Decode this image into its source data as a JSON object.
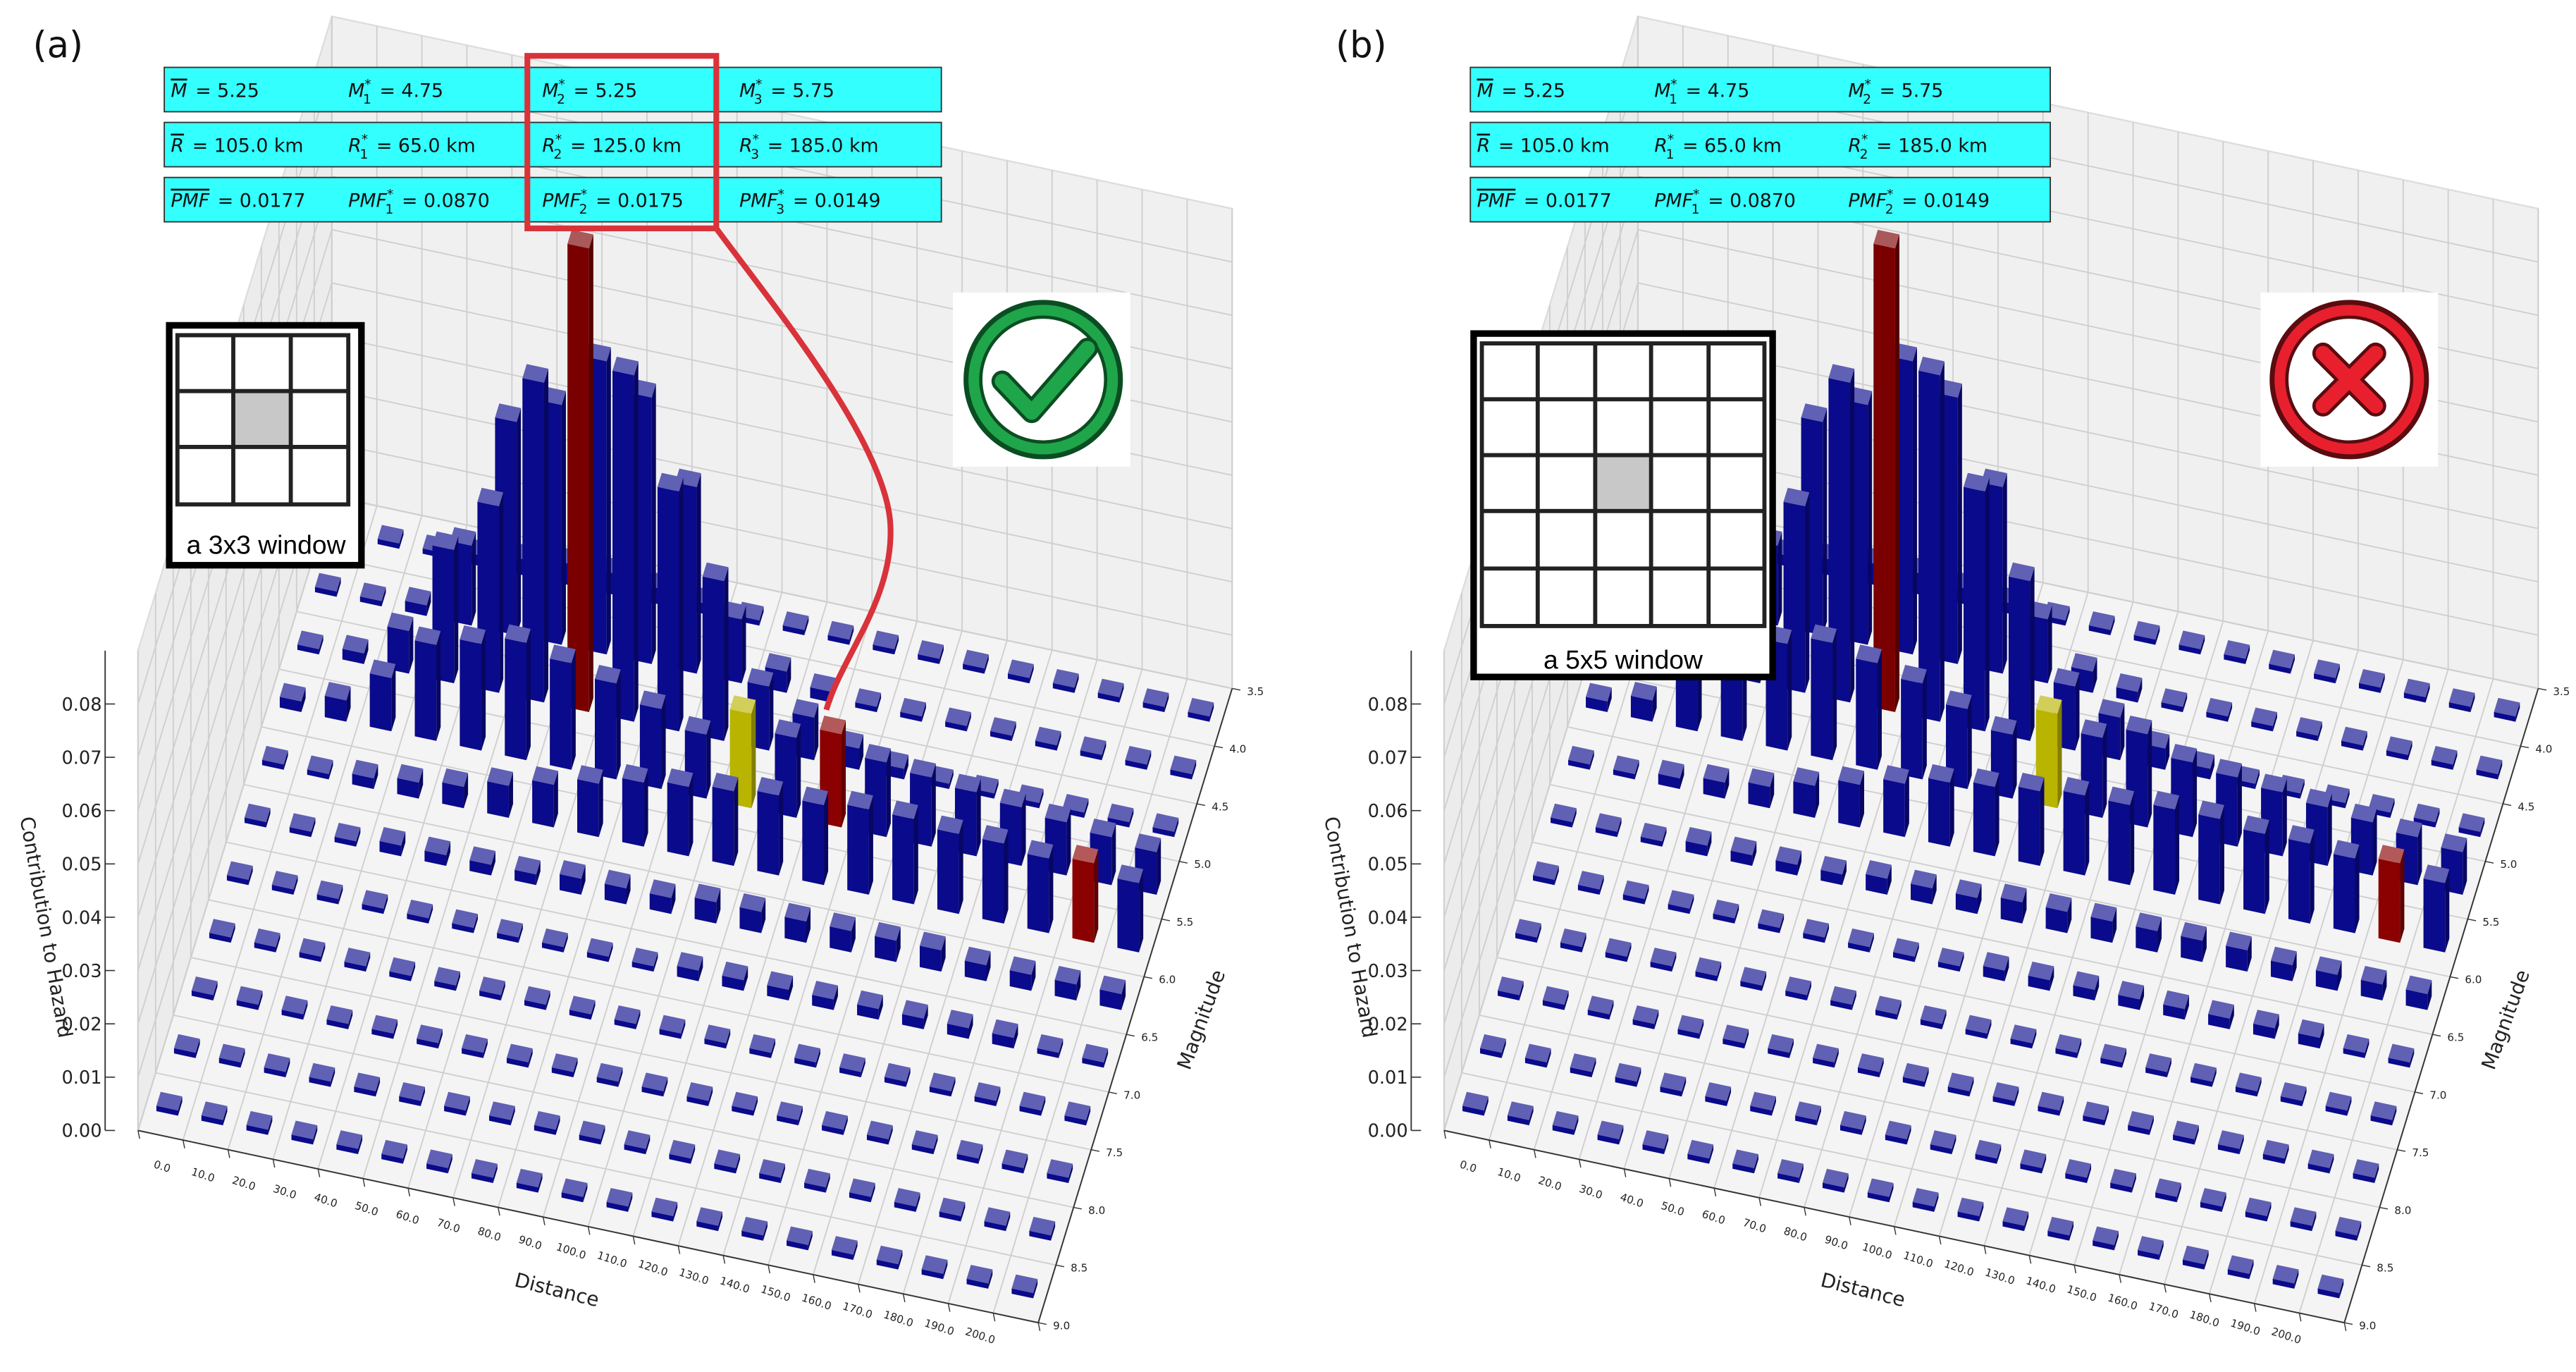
{
  "chart_data": [
    {
      "type": "bar3d",
      "panel_label": "(a)",
      "inset_label": "a 3x3 window",
      "info": [
        [
          {
            "symbol": "M",
            "overline": true,
            "value": "= 5.25"
          },
          {
            "symbol": "M",
            "sub": "1",
            "sup": "*",
            "value": "= 4.75"
          },
          {
            "symbol": "M",
            "sub": "2",
            "sup": "*",
            "value": "= 5.25"
          },
          {
            "symbol": "M",
            "sub": "3",
            "sup": "*",
            "value": "= 5.75"
          }
        ],
        [
          {
            "symbol": "R",
            "overline": true,
            "value": "= 105.0 km"
          },
          {
            "symbol": "R",
            "sub": "1",
            "sup": "*",
            "value": "= 65.0 km"
          },
          {
            "symbol": "R",
            "sub": "2",
            "sup": "*",
            "value": "= 125.0 km"
          },
          {
            "symbol": "R",
            "sub": "3",
            "sup": "*",
            "value": "= 185.0 km"
          }
        ],
        [
          {
            "symbol": "PMF",
            "overline": true,
            "value": "= 0.0177"
          },
          {
            "symbol": "PMF",
            "sub": "1",
            "sup": "*",
            "value": "= 0.0870"
          },
          {
            "symbol": "PMF",
            "sub": "2",
            "sup": "*",
            "value": "= 0.0175"
          },
          {
            "symbol": "PMF",
            "sub": "3",
            "sup": "*",
            "value": "= 0.0149"
          }
        ]
      ],
      "xlabel": "Distance",
      "ylabel": "Magnitude",
      "zlabel": "Contribution to Hazard",
      "x": [
        5,
        15,
        25,
        35,
        45,
        55,
        65,
        75,
        85,
        95,
        105,
        115,
        125,
        135,
        145,
        155,
        165,
        175,
        185,
        195
      ],
      "y": [
        3.75,
        4.25,
        4.75,
        5.25,
        5.75,
        6.25,
        6.75,
        7.25,
        7.75,
        8.25,
        8.75
      ],
      "values": [
        [
          0.001,
          0.001,
          0.001,
          0.002,
          0.003,
          0.004,
          0.004,
          0.003,
          0.002,
          0.001,
          0.001,
          0.001,
          0.001,
          0.001,
          0.001,
          0.001,
          0.001,
          0.001,
          0.001,
          0.001
        ],
        [
          0.001,
          0.001,
          0.002,
          0.015,
          0.04,
          0.045,
          0.055,
          0.05,
          0.035,
          0.012,
          0.004,
          0.002,
          0.001,
          0.001,
          0.001,
          0.001,
          0.001,
          0.001,
          0.001,
          0.001
        ],
        [
          0.001,
          0.002,
          0.008,
          0.025,
          0.035,
          0.06,
          0.087,
          0.065,
          0.045,
          0.03,
          0.012,
          0.008,
          0.004,
          0.002,
          0.001,
          0.001,
          0.001,
          0.001,
          0.001,
          0.001
        ],
        [
          0.002,
          0.004,
          0.01,
          0.018,
          0.02,
          0.022,
          0.02,
          0.018,
          0.015,
          0.012,
          0.0177,
          0.015,
          0.0175,
          0.014,
          0.013,
          0.012,
          0.011,
          0.01,
          0.009,
          0.008
        ],
        [
          0.001,
          0.001,
          0.002,
          0.003,
          0.004,
          0.006,
          0.008,
          0.01,
          0.012,
          0.013,
          0.014,
          0.015,
          0.015,
          0.016,
          0.016,
          0.015,
          0.015,
          0.014,
          0.0149,
          0.013
        ],
        [
          0.001,
          0.001,
          0.001,
          0.002,
          0.002,
          0.002,
          0.002,
          0.003,
          0.003,
          0.003,
          0.004,
          0.004,
          0.004,
          0.004,
          0.004,
          0.004,
          0.003,
          0.003,
          0.003,
          0.003
        ],
        [
          0.001,
          0.001,
          0.001,
          0.001,
          0.001,
          0.001,
          0.001,
          0.001,
          0.001,
          0.001,
          0.002,
          0.002,
          0.002,
          0.002,
          0.002,
          0.002,
          0.002,
          0.002,
          0.001,
          0.001
        ],
        [
          0.001,
          0.001,
          0.001,
          0.001,
          0.001,
          0.001,
          0.001,
          0.001,
          0.001,
          0.001,
          0.001,
          0.001,
          0.001,
          0.001,
          0.001,
          0.001,
          0.001,
          0.001,
          0.001,
          0.001
        ],
        [
          0.001,
          0.001,
          0.001,
          0.001,
          0.001,
          0.001,
          0.001,
          0.001,
          0.001,
          0.001,
          0.001,
          0.001,
          0.001,
          0.001,
          0.001,
          0.001,
          0.001,
          0.001,
          0.001,
          0.001
        ],
        [
          0.001,
          0.001,
          0.001,
          0.001,
          0.001,
          0.001,
          0.001,
          0.001,
          0.001,
          0.001,
          0.001,
          0.001,
          0.001,
          0.001,
          0.001,
          0.001,
          0.001,
          0.001,
          0.001,
          0.001
        ],
        [
          0.001,
          0.001,
          0.001,
          0.001,
          0.001,
          0.001,
          0.001,
          0.001,
          0.001,
          0.001,
          0.001,
          0.001,
          0.001,
          0.001,
          0.001,
          0.001,
          0.001,
          0.001,
          0.001,
          0.001
        ]
      ],
      "color": "#0a0a8c",
      "highlights": [
        {
          "x": 65,
          "y": 4.75,
          "color": "#7a0000"
        },
        {
          "x": 125,
          "y": 5.25,
          "color": "#8b0000"
        },
        {
          "x": 185,
          "y": 5.75,
          "color": "#8b0000"
        },
        {
          "x": 105,
          "y": 5.25,
          "color": "#b8b400"
        }
      ],
      "xlim": [
        0,
        200
      ],
      "ylim": [
        3.5,
        9
      ],
      "zlim": [
        0,
        0.09
      ],
      "xticks": [
        {
          "value": 0,
          "label": "0.0"
        },
        {
          "value": 10,
          "label": "10.0"
        },
        {
          "value": 20,
          "label": "20.0"
        },
        {
          "value": 30,
          "label": "30.0"
        },
        {
          "value": 40,
          "label": "40.0"
        },
        {
          "value": 50,
          "label": "50.0"
        },
        {
          "value": 60,
          "label": "60.0"
        },
        {
          "value": 70,
          "label": "70.0"
        },
        {
          "value": 80,
          "label": "80.0"
        },
        {
          "value": 90,
          "label": "90.0"
        },
        {
          "value": 100,
          "label": "100.0"
        },
        {
          "value": 110,
          "label": "110.0"
        },
        {
          "value": 120,
          "label": "120.0"
        },
        {
          "value": 130,
          "label": "130.0"
        },
        {
          "value": 140,
          "label": "140.0"
        },
        {
          "value": 150,
          "label": "150.0"
        },
        {
          "value": 160,
          "label": "160.0"
        },
        {
          "value": 170,
          "label": "170.0"
        },
        {
          "value": 180,
          "label": "180.0"
        },
        {
          "value": 190,
          "label": "190.0"
        },
        {
          "value": 200,
          "label": "200.0"
        }
      ],
      "yticks": [
        3.5,
        {
          "value": 4,
          "label": "4.0"
        },
        4.5,
        {
          "value": 5,
          "label": "5.0"
        },
        5.5,
        {
          "value": 6,
          "label": "6.0"
        },
        6.5,
        {
          "value": 7,
          "label": "7.0"
        },
        7.5,
        {
          "value": 8,
          "label": "8.0"
        },
        8.5,
        {
          "value": 9,
          "label": "9.0"
        }
      ],
      "zticks": [
        {
          "value": 0,
          "label": "0.00"
        },
        0.01,
        0.02,
        0.03,
        0.04,
        0.05,
        0.06,
        0.07,
        0.08
      ]
    },
    {
      "type": "bar3d",
      "panel_label": "(b)",
      "inset_label": "a 5x5 window",
      "info": [
        [
          {
            "symbol": "M",
            "overline": true,
            "value": "= 5.25"
          },
          {
            "symbol": "M",
            "sub": "1",
            "sup": "*",
            "value": "= 4.75"
          },
          {
            "symbol": "M",
            "sub": "2",
            "sup": "*",
            "value": "= 5.75"
          }
        ],
        [
          {
            "symbol": "R",
            "overline": true,
            "value": "= 105.0 km"
          },
          {
            "symbol": "R",
            "sub": "1",
            "sup": "*",
            "value": "= 65.0 km"
          },
          {
            "symbol": "R",
            "sub": "2",
            "sup": "*",
            "value": "= 185.0 km"
          }
        ],
        [
          {
            "symbol": "PMF",
            "overline": true,
            "value": "= 0.0177"
          },
          {
            "symbol": "PMF",
            "sub": "1",
            "sup": "*",
            "value": "= 0.0870"
          },
          {
            "symbol": "PMF",
            "sub": "2",
            "sup": "*",
            "value": "= 0.0149"
          }
        ]
      ],
      "xlabel": "Distance",
      "ylabel": "Magnitude",
      "zlabel": "Contribution to Hazard",
      "x": [
        5,
        15,
        25,
        35,
        45,
        55,
        65,
        75,
        85,
        95,
        105,
        115,
        125,
        135,
        145,
        155,
        165,
        175,
        185,
        195
      ],
      "y": [
        3.75,
        4.25,
        4.75,
        5.25,
        5.75,
        6.25,
        6.75,
        7.25,
        7.75,
        8.25,
        8.75
      ],
      "values": [
        [
          0.001,
          0.001,
          0.001,
          0.002,
          0.003,
          0.004,
          0.004,
          0.003,
          0.002,
          0.001,
          0.001,
          0.001,
          0.001,
          0.001,
          0.001,
          0.001,
          0.001,
          0.001,
          0.001,
          0.001
        ],
        [
          0.001,
          0.001,
          0.002,
          0.015,
          0.04,
          0.045,
          0.055,
          0.05,
          0.035,
          0.012,
          0.004,
          0.002,
          0.001,
          0.001,
          0.001,
          0.001,
          0.001,
          0.001,
          0.001,
          0.001
        ],
        [
          0.001,
          0.002,
          0.008,
          0.025,
          0.035,
          0.06,
          0.087,
          0.065,
          0.045,
          0.03,
          0.012,
          0.008,
          0.004,
          0.002,
          0.001,
          0.001,
          0.001,
          0.001,
          0.001,
          0.001
        ],
        [
          0.002,
          0.004,
          0.01,
          0.018,
          0.02,
          0.022,
          0.02,
          0.018,
          0.015,
          0.012,
          0.0177,
          0.015,
          0.0175,
          0.014,
          0.013,
          0.012,
          0.011,
          0.01,
          0.009,
          0.008
        ],
        [
          0.001,
          0.001,
          0.002,
          0.003,
          0.004,
          0.006,
          0.008,
          0.01,
          0.012,
          0.013,
          0.014,
          0.015,
          0.015,
          0.016,
          0.016,
          0.015,
          0.015,
          0.014,
          0.0149,
          0.013
        ],
        [
          0.001,
          0.001,
          0.001,
          0.002,
          0.002,
          0.002,
          0.002,
          0.003,
          0.003,
          0.003,
          0.004,
          0.004,
          0.004,
          0.004,
          0.004,
          0.004,
          0.003,
          0.003,
          0.003,
          0.003
        ],
        [
          0.001,
          0.001,
          0.001,
          0.001,
          0.001,
          0.001,
          0.001,
          0.001,
          0.001,
          0.001,
          0.002,
          0.002,
          0.002,
          0.002,
          0.002,
          0.002,
          0.002,
          0.002,
          0.001,
          0.001
        ],
        [
          0.001,
          0.001,
          0.001,
          0.001,
          0.001,
          0.001,
          0.001,
          0.001,
          0.001,
          0.001,
          0.001,
          0.001,
          0.001,
          0.001,
          0.001,
          0.001,
          0.001,
          0.001,
          0.001,
          0.001
        ],
        [
          0.001,
          0.001,
          0.001,
          0.001,
          0.001,
          0.001,
          0.001,
          0.001,
          0.001,
          0.001,
          0.001,
          0.001,
          0.001,
          0.001,
          0.001,
          0.001,
          0.001,
          0.001,
          0.001,
          0.001
        ],
        [
          0.001,
          0.001,
          0.001,
          0.001,
          0.001,
          0.001,
          0.001,
          0.001,
          0.001,
          0.001,
          0.001,
          0.001,
          0.001,
          0.001,
          0.001,
          0.001,
          0.001,
          0.001,
          0.001,
          0.001
        ],
        [
          0.001,
          0.001,
          0.001,
          0.001,
          0.001,
          0.001,
          0.001,
          0.001,
          0.001,
          0.001,
          0.001,
          0.001,
          0.001,
          0.001,
          0.001,
          0.001,
          0.001,
          0.001,
          0.001,
          0.001
        ]
      ],
      "color": "#0a0a8c",
      "highlights": [
        {
          "x": 65,
          "y": 4.75,
          "color": "#7a0000"
        },
        {
          "x": 185,
          "y": 5.75,
          "color": "#8b0000"
        },
        {
          "x": 105,
          "y": 5.25,
          "color": "#b8b400"
        }
      ],
      "xlim": [
        0,
        200
      ],
      "ylim": [
        3.5,
        9
      ],
      "zlim": [
        0,
        0.09
      ],
      "xticks": [
        {
          "value": 0,
          "label": "0.0"
        },
        {
          "value": 10,
          "label": "10.0"
        },
        {
          "value": 20,
          "label": "20.0"
        },
        {
          "value": 30,
          "label": "30.0"
        },
        {
          "value": 40,
          "label": "40.0"
        },
        {
          "value": 50,
          "label": "50.0"
        },
        {
          "value": 60,
          "label": "60.0"
        },
        {
          "value": 70,
          "label": "70.0"
        },
        {
          "value": 80,
          "label": "80.0"
        },
        {
          "value": 90,
          "label": "90.0"
        },
        {
          "value": 100,
          "label": "100.0"
        },
        {
          "value": 110,
          "label": "110.0"
        },
        {
          "value": 120,
          "label": "120.0"
        },
        {
          "value": 130,
          "label": "130.0"
        },
        {
          "value": 140,
          "label": "140.0"
        },
        {
          "value": 150,
          "label": "150.0"
        },
        {
          "value": 160,
          "label": "160.0"
        },
        {
          "value": 170,
          "label": "170.0"
        },
        {
          "value": 180,
          "label": "180.0"
        },
        {
          "value": 190,
          "label": "190.0"
        },
        {
          "value": 200,
          "label": "200.0"
        }
      ],
      "yticks": [
        3.5,
        {
          "value": 4,
          "label": "4.0"
        },
        4.5,
        {
          "value": 5,
          "label": "5.0"
        },
        5.5,
        {
          "value": 6,
          "label": "6.0"
        },
        6.5,
        {
          "value": 7,
          "label": "7.0"
        },
        7.5,
        {
          "value": 8,
          "label": "8.0"
        },
        8.5,
        {
          "value": 9,
          "label": "9.0"
        }
      ],
      "zticks": [
        {
          "value": 0,
          "label": "0.00"
        },
        0.01,
        0.02,
        0.03,
        0.04,
        0.05,
        0.06,
        0.07,
        0.08
      ]
    }
  ]
}
